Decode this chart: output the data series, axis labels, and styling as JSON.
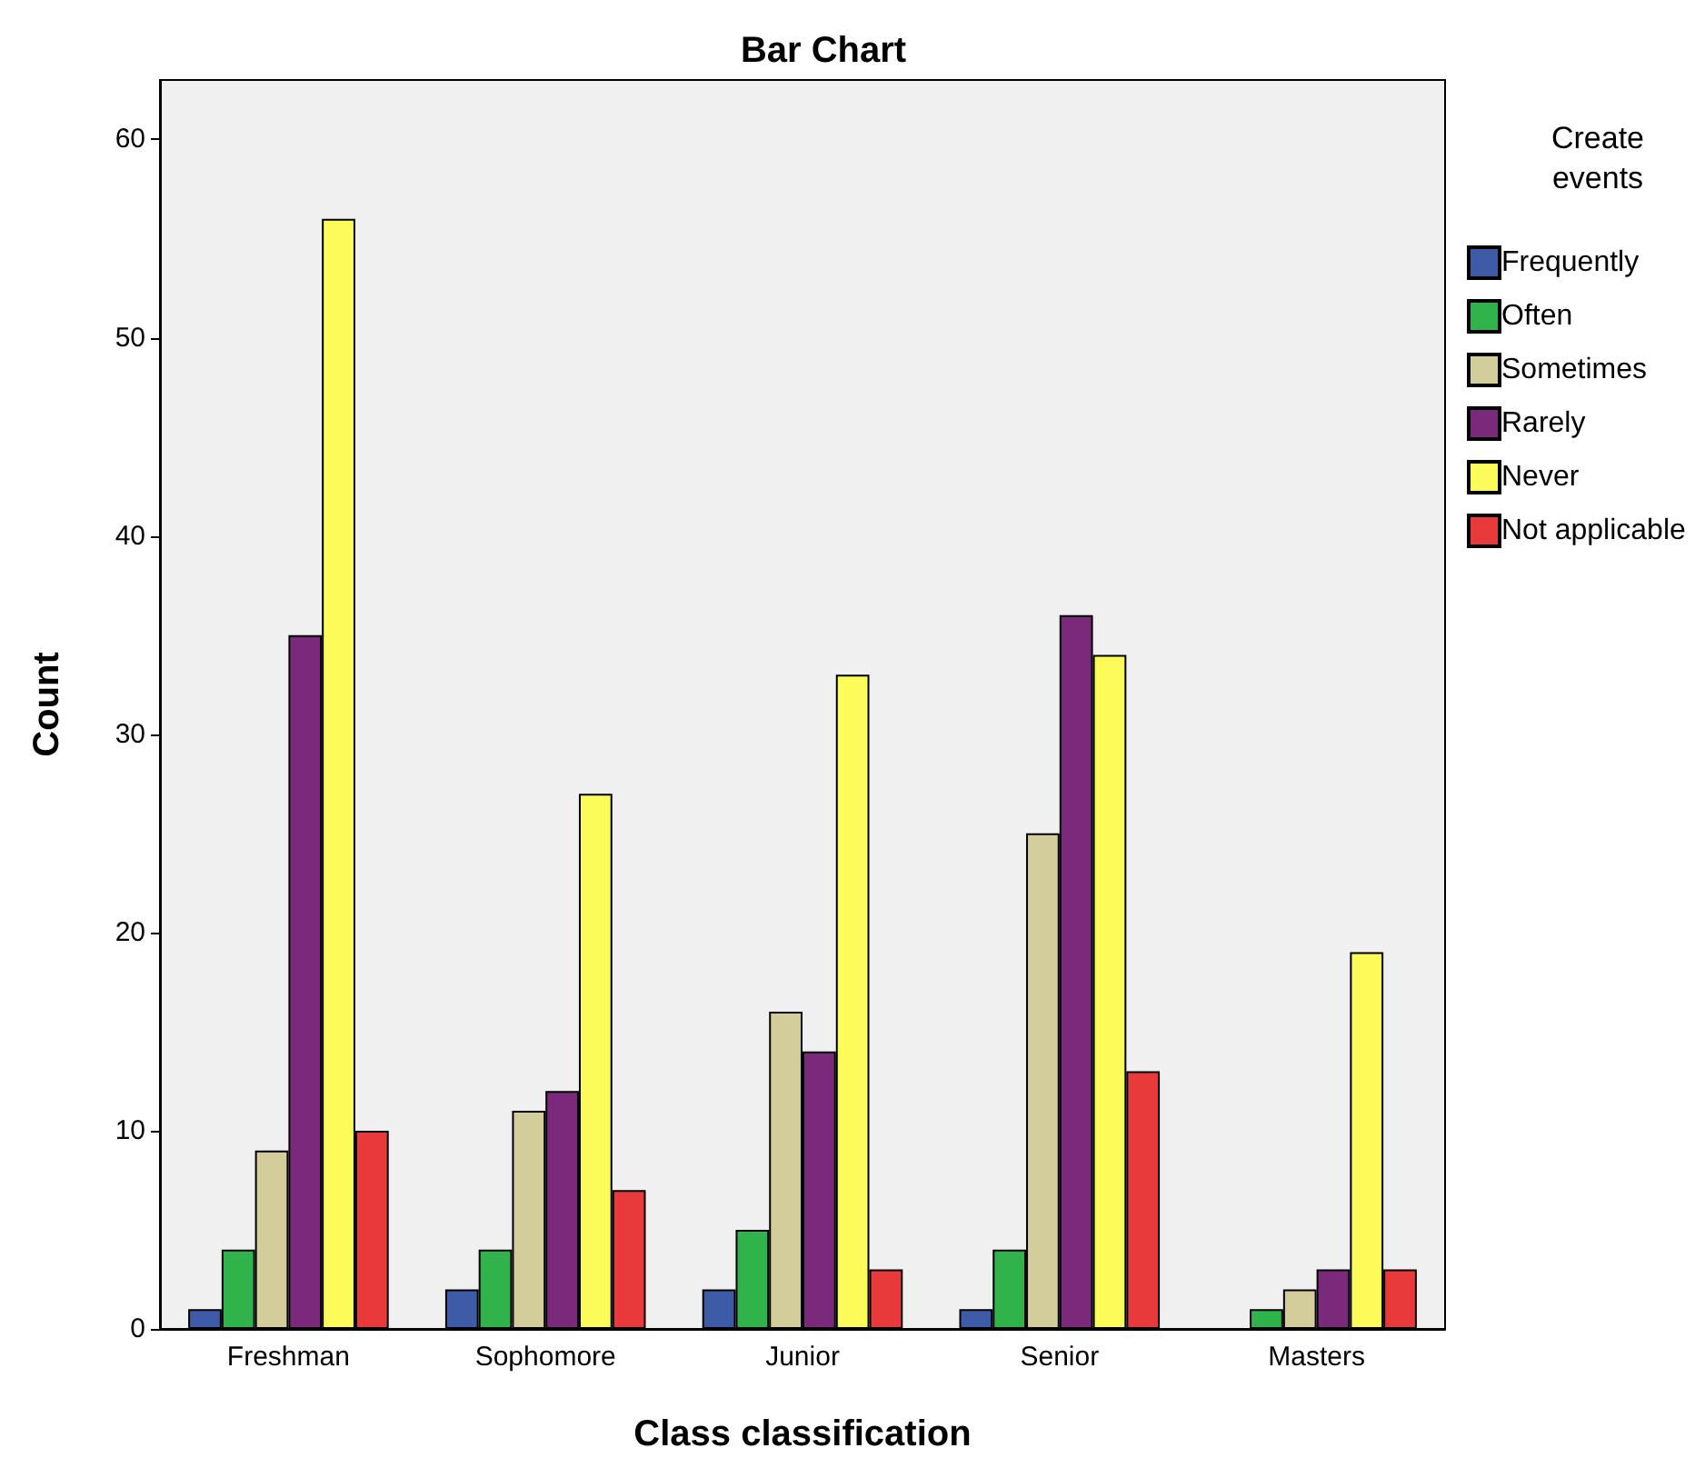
{
  "chart_data": {
    "type": "bar",
    "title": "Bar Chart",
    "xlabel": "Class classification",
    "ylabel": "Count",
    "legend_title": "Create\nevents",
    "categories": [
      "Freshman",
      "Sophomore",
      "Junior",
      "Senior",
      "Masters"
    ],
    "series": [
      {
        "name": "Frequently",
        "color": "#3e5ba8",
        "values": [
          1,
          2,
          2,
          1,
          null
        ]
      },
      {
        "name": "Often",
        "color": "#2fb34a",
        "values": [
          4,
          4,
          5,
          4,
          1
        ]
      },
      {
        "name": "Sometimes",
        "color": "#d3cc9b",
        "values": [
          9,
          11,
          16,
          25,
          2
        ]
      },
      {
        "name": "Rarely",
        "color": "#7b2a7b",
        "values": [
          35,
          12,
          14,
          36,
          3
        ]
      },
      {
        "name": "Never",
        "color": "#fbfb5a",
        "values": [
          56,
          27,
          33,
          34,
          19
        ]
      },
      {
        "name": "Not applicable",
        "color": "#e83a3a",
        "values": [
          10,
          7,
          3,
          13,
          3
        ]
      }
    ],
    "ylim": [
      0,
      63
    ],
    "yticks": [
      0,
      10,
      20,
      30,
      40,
      50,
      60
    ],
    "grid": false,
    "legend": "right"
  }
}
